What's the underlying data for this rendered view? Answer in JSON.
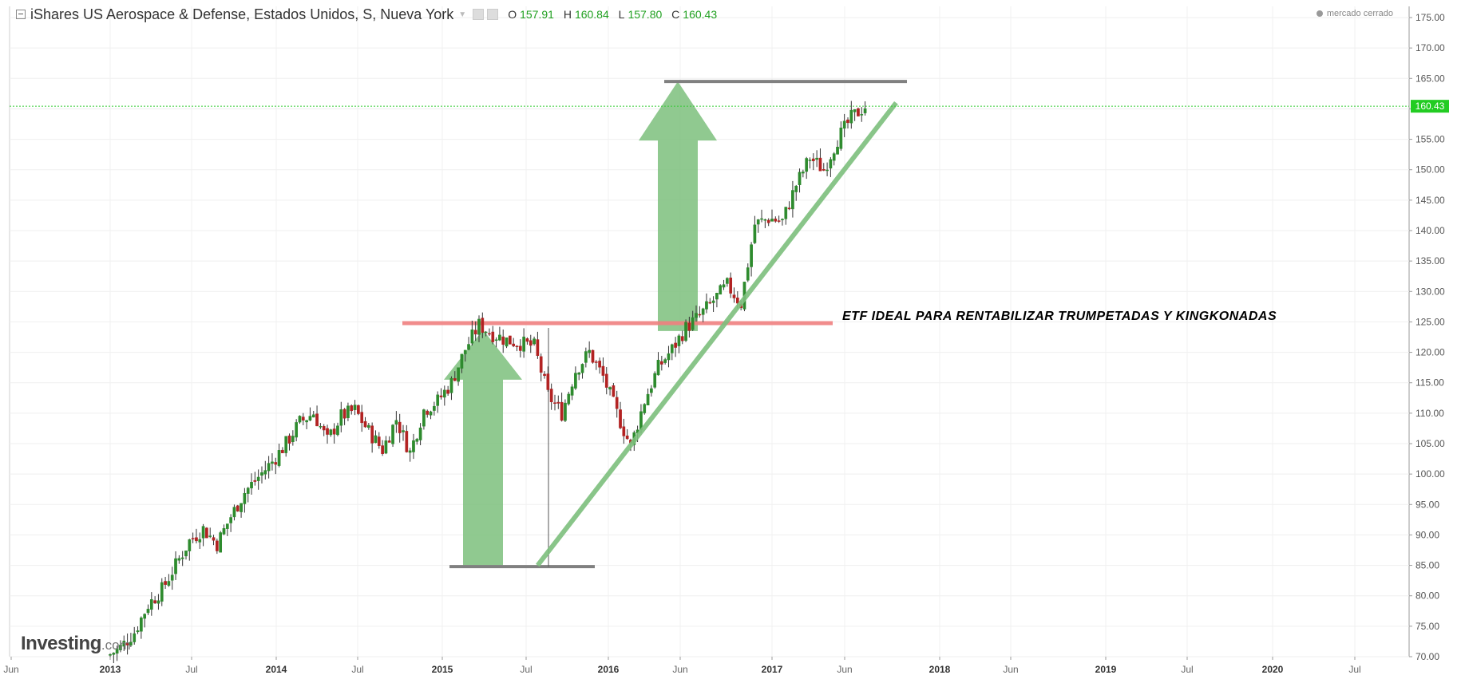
{
  "header": {
    "title": "iShares US Aerospace & Defense, Estados Unidos, S, Nueva York",
    "ohlc": [
      {
        "key": "O",
        "value": "157.91"
      },
      {
        "key": "H",
        "value": "160.84"
      },
      {
        "key": "L",
        "value": "157.80"
      },
      {
        "key": "C",
        "value": "160.43"
      }
    ]
  },
  "status": "mercado cerrado",
  "logo": {
    "brand": "Investing",
    "suffix": ".com"
  },
  "annotation": "ETF IDEAL PARA RENTABILIZAR TRUMPETADAS Y KINGKONADAS",
  "colors": {
    "up": "#2e8b2e",
    "down": "#b22222",
    "price_line": "#33cc33",
    "arrow": "#7cbf7c",
    "resistance": "#f08080",
    "bracket": "#808080"
  },
  "chart_data": {
    "type": "candlestick",
    "interval": "weekly",
    "ylim": [
      70,
      177
    ],
    "y_ticks": [
      "70.00",
      "75.00",
      "80.00",
      "85.00",
      "90.00",
      "95.00",
      "100.00",
      "105.00",
      "110.00",
      "115.00",
      "120.00",
      "125.00",
      "130.00",
      "135.00",
      "140.00",
      "145.00",
      "150.00",
      "155.00",
      "160.00",
      "165.00",
      "170.00",
      "175.00"
    ],
    "x_ticks": [
      "Jun",
      "2013",
      "Jul",
      "2014",
      "Jul",
      "2015",
      "Jul",
      "2016",
      "Jun",
      "2017",
      "Jun",
      "2018",
      "Jun",
      "2019",
      "Jul",
      "2020",
      "Jul"
    ],
    "last_price": "160.43",
    "series": [
      {
        "date": "2013-01",
        "close": 71.5
      },
      {
        "date": "2013-02",
        "close": 74.0
      },
      {
        "date": "2013-03",
        "close": 78.5
      },
      {
        "date": "2013-04",
        "close": 81.0
      },
      {
        "date": "2013-05",
        "close": 85.0
      },
      {
        "date": "2013-06",
        "close": 89.0
      },
      {
        "date": "2013-07",
        "close": 91.0
      },
      {
        "date": "2013-08",
        "close": 88.5
      },
      {
        "date": "2013-09",
        "close": 93.0
      },
      {
        "date": "2013-10",
        "close": 97.0
      },
      {
        "date": "2013-11",
        "close": 99.5
      },
      {
        "date": "2013-12",
        "close": 102.0
      },
      {
        "date": "2014-01",
        "close": 105.0
      },
      {
        "date": "2014-02",
        "close": 108.5
      },
      {
        "date": "2014-03",
        "close": 110.0
      },
      {
        "date": "2014-04",
        "close": 105.5
      },
      {
        "date": "2014-05",
        "close": 109.5
      },
      {
        "date": "2014-06",
        "close": 110.5
      },
      {
        "date": "2014-07",
        "close": 107.0
      },
      {
        "date": "2014-08",
        "close": 104.0
      },
      {
        "date": "2014-09",
        "close": 109.0
      },
      {
        "date": "2014-10",
        "close": 103.5
      },
      {
        "date": "2014-11",
        "close": 110.5
      },
      {
        "date": "2014-12",
        "close": 112.0
      },
      {
        "date": "2015-01",
        "close": 115.0
      },
      {
        "date": "2015-02",
        "close": 120.5
      },
      {
        "date": "2015-03",
        "close": 124.5
      },
      {
        "date": "2015-04",
        "close": 123.0
      },
      {
        "date": "2015-05",
        "close": 122.0
      },
      {
        "date": "2015-06",
        "close": 121.5
      },
      {
        "date": "2015-07",
        "close": 121.0
      },
      {
        "date": "2015-08",
        "close": 113.0
      },
      {
        "date": "2015-09",
        "close": 110.0
      },
      {
        "date": "2015-10",
        "close": 117.0
      },
      {
        "date": "2015-11",
        "close": 120.0
      },
      {
        "date": "2015-12",
        "close": 116.0
      },
      {
        "date": "2016-01",
        "close": 110.0
      },
      {
        "date": "2016-02",
        "close": 104.5
      },
      {
        "date": "2016-03",
        "close": 112.0
      },
      {
        "date": "2016-04",
        "close": 117.5
      },
      {
        "date": "2016-05",
        "close": 120.5
      },
      {
        "date": "2016-06",
        "close": 124.0
      },
      {
        "date": "2016-07",
        "close": 126.0
      },
      {
        "date": "2016-08",
        "close": 128.5
      },
      {
        "date": "2016-09",
        "close": 131.0
      },
      {
        "date": "2016-10",
        "close": 128.0
      },
      {
        "date": "2016-11",
        "close": 141.0
      },
      {
        "date": "2016-12",
        "close": 142.0
      },
      {
        "date": "2017-01",
        "close": 141.5
      },
      {
        "date": "2017-02",
        "close": 147.5
      },
      {
        "date": "2017-03",
        "close": 152.0
      },
      {
        "date": "2017-04",
        "close": 150.0
      },
      {
        "date": "2017-05",
        "close": 155.0
      },
      {
        "date": "2017-06",
        "close": 158.5
      },
      {
        "date": "2017-07",
        "close": 160.43
      }
    ],
    "annotations": {
      "resistance_level": 124.8,
      "target_level": 164.5,
      "base_level": 84.8,
      "trendline": [
        {
          "date": "2015-08",
          "value": 85
        },
        {
          "date": "2017-10",
          "value": 161
        }
      ]
    }
  }
}
